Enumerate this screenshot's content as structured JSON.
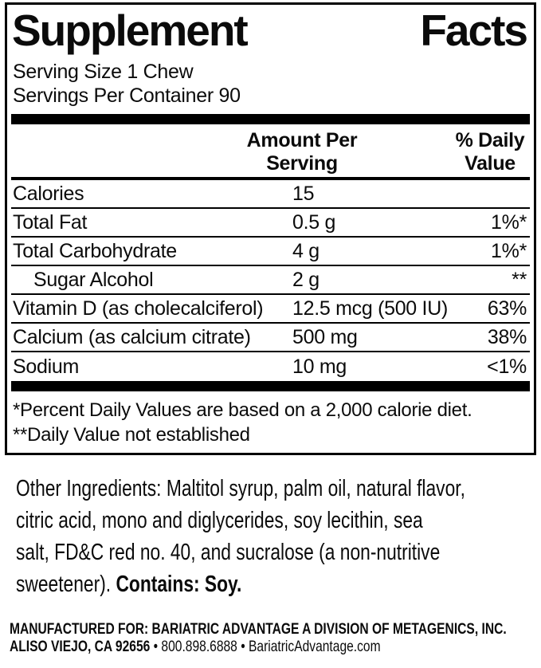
{
  "label": {
    "title": {
      "word1": "Supplement",
      "word2": "Facts"
    },
    "serving_size": "Serving Size 1 Chew",
    "servings_per_container": "Servings Per Container 90",
    "columns": {
      "amount_line1": "Amount Per",
      "amount_line2": "Serving",
      "dv_line1": "% Daily",
      "dv_line2": "Value"
    },
    "rows": [
      {
        "name": "Calories",
        "amount": "15",
        "dv": ""
      },
      {
        "name": "Total Fat",
        "amount": "0.5 g",
        "dv": "1%*"
      },
      {
        "name": "Total Carbohydrate",
        "amount": "4 g",
        "dv": "1%*"
      },
      {
        "name": "Sugar Alcohol",
        "amount": "2 g",
        "dv": "**"
      },
      {
        "name": "Vitamin D (as cholecalciferol)",
        "amount": "12.5 mcg (500 IU)",
        "dv": "63%"
      },
      {
        "name": "Calcium (as calcium citrate)",
        "amount": "500 mg",
        "dv": "38%"
      },
      {
        "name": "Sodium",
        "amount": "10 mg",
        "dv": "<1%"
      }
    ],
    "footnotes": [
      "*Percent Daily Values are based on a 2,000 calorie diet.",
      "**Daily Value not established"
    ]
  },
  "other_ingredients": {
    "lines": [
      "Other Ingredients: Maltitol syrup, palm oil, natural flavor,",
      "citric acid, mono and diglycerides, soy lecithin, sea",
      "salt, FD&C red no. 40, and sucralose (a non-nutritive"
    ],
    "last_line": "sweetener).",
    "contains": "Contains: Soy."
  },
  "manufacturer": {
    "line1": "MANUFACTURED FOR: BARIATRIC ADVANTAGE A DIVISION OF METAGENICS, INC.",
    "line2_bold": "ALISO VIEJO, CA 92656",
    "line2_rest": " • 800.898.6888 • BariatricAdvantage.com"
  },
  "colors": {
    "text": "#0b0b0b",
    "rule": "#000000",
    "background": "#ffffff"
  }
}
